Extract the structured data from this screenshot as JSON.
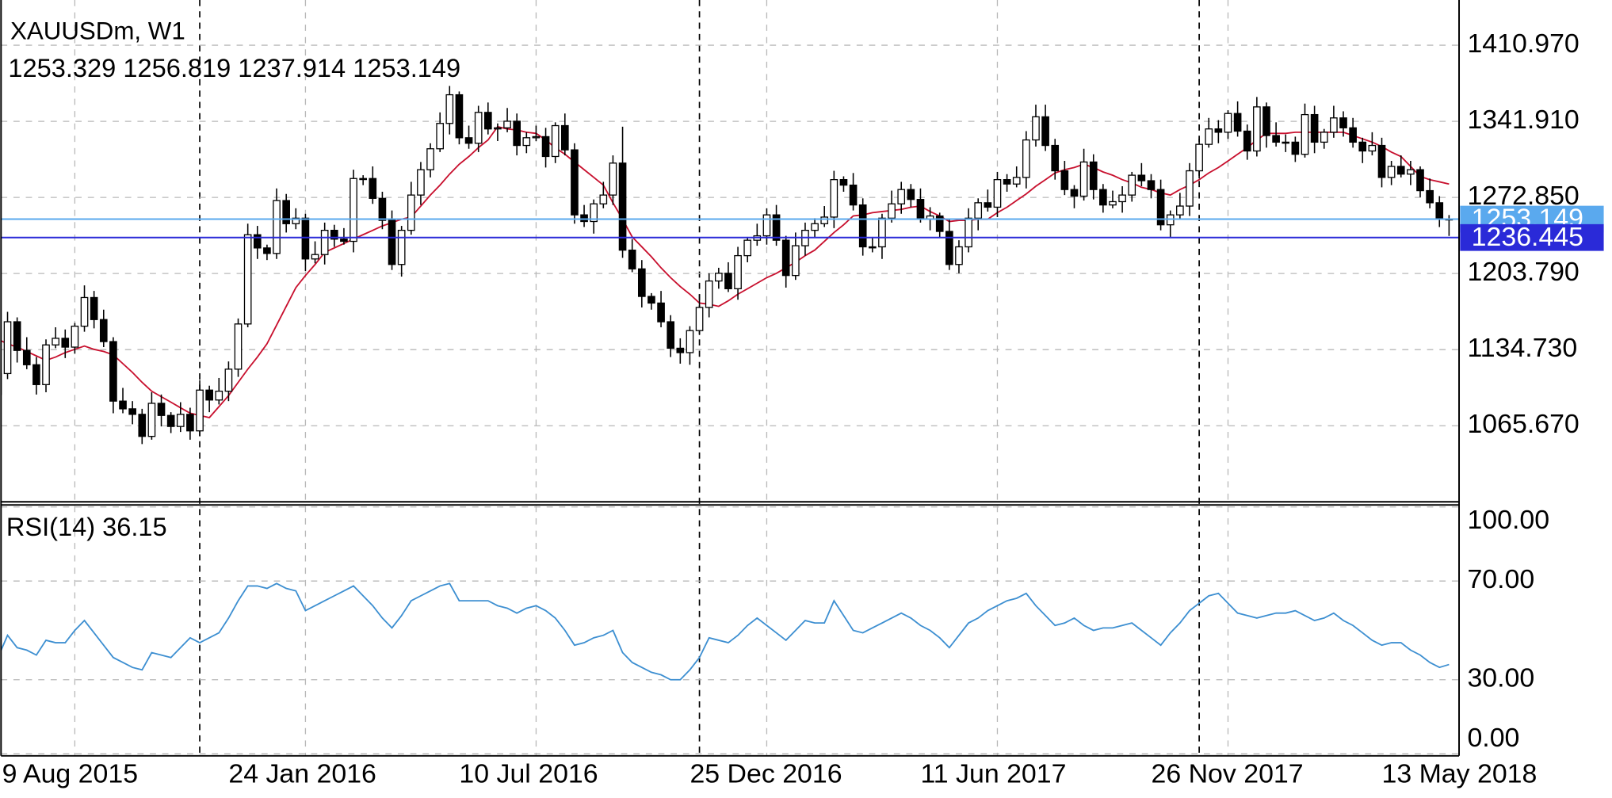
{
  "chart_data": [
    {
      "type": "candlestick",
      "title": "XAUUSDm, W1",
      "categories": [
        "9 Aug 2015",
        null,
        null,
        null,
        null,
        null,
        null,
        null,
        null,
        null,
        null,
        null,
        null,
        null,
        null,
        null,
        null,
        null,
        null,
        null,
        null,
        null,
        null,
        null,
        "24 Jan 2016",
        null,
        null,
        null,
        null,
        null,
        null,
        null,
        null,
        null,
        null,
        null,
        null,
        null,
        null,
        null,
        null,
        null,
        null,
        null,
        null,
        null,
        null,
        null,
        "10 Jul 2016",
        null,
        null,
        null,
        null,
        null,
        null,
        null,
        null,
        null,
        null,
        null,
        null,
        null,
        null,
        null,
        null,
        null,
        null,
        null,
        null,
        null,
        null,
        null,
        "25 Dec 2016",
        null,
        null,
        null,
        null,
        null,
        null,
        null,
        null,
        null,
        null,
        null,
        null,
        null,
        null,
        null,
        null,
        null,
        null,
        null,
        null,
        null,
        null,
        null,
        "11 Jun 2017",
        null,
        null,
        null,
        null,
        null,
        null,
        null,
        null,
        null,
        null,
        null,
        null,
        null,
        null,
        null,
        null,
        null,
        null,
        null,
        null,
        null,
        null,
        null,
        "26 Nov 2017",
        null,
        null,
        null,
        null,
        null,
        null,
        null,
        null,
        null,
        null,
        null,
        null,
        null,
        null,
        null,
        null,
        null,
        null,
        null,
        null,
        null,
        null,
        null,
        "13 May 2018",
        null,
        null,
        null,
        null,
        null,
        null,
        null
      ],
      "open": [
        1094,
        1113,
        1160,
        1134,
        1121,
        1103,
        1139,
        1145,
        1137,
        1156,
        1182,
        1162,
        1142,
        1088,
        1081,
        1076,
        1056,
        1086,
        1075,
        1065,
        1076,
        1061,
        1098,
        1089,
        1097,
        1117,
        1158,
        1239,
        1227,
        1222,
        1270,
        1249,
        1254,
        1217,
        1221,
        1243,
        1235,
        1233,
        1290,
        1290,
        1272,
        1252,
        1212,
        1243,
        1275,
        1298,
        1317,
        1340,
        1366,
        1327,
        1322,
        1350,
        1335,
        1336,
        1342,
        1320,
        1327,
        1328,
        1310,
        1338,
        1316,
        1257,
        1251,
        1267,
        1275,
        1304,
        1225,
        1208,
        1183,
        1177,
        1160,
        1136,
        1132,
        1152,
        1173,
        1197,
        1204,
        1190,
        1220,
        1234,
        1238,
        1257,
        1234,
        1202,
        1229,
        1243,
        1249,
        1255,
        1289,
        1284,
        1266,
        1228,
        1228,
        1254,
        1267,
        1280,
        1271,
        1253,
        1256,
        1242,
        1212,
        1228,
        1254,
        1268,
        1264,
        1289,
        1285,
        1291,
        1325,
        1346,
        1320,
        1297,
        1280,
        1274,
        1305,
        1280,
        1266,
        1269,
        1275,
        1293,
        1288,
        1280,
        1248,
        1257,
        1265,
        1297,
        1321,
        1335,
        1332,
        1349,
        1333,
        1315,
        1355,
        1329,
        1323,
        1323,
        1312,
        1348,
        1323,
        1332,
        1345,
        1336,
        1323,
        1315,
        1320,
        1291,
        1301,
        1294,
        1298,
        1279,
        1268,
        1253.329
      ],
      "high": [
        1119,
        1169,
        1164,
        1146,
        1128,
        1144,
        1155,
        1153,
        1159,
        1193,
        1188,
        1171,
        1146,
        1100,
        1088,
        1081,
        1096,
        1094,
        1078,
        1087,
        1082,
        1107,
        1102,
        1109,
        1124,
        1163,
        1249,
        1247,
        1230,
        1281,
        1276,
        1263,
        1258,
        1233,
        1250,
        1248,
        1245,
        1298,
        1293,
        1301,
        1278,
        1261,
        1247,
        1287,
        1305,
        1322,
        1350,
        1374,
        1369,
        1338,
        1356,
        1359,
        1340,
        1354,
        1349,
        1332,
        1338,
        1336,
        1341,
        1349,
        1322,
        1266,
        1271,
        1287,
        1311,
        1337,
        1235,
        1216,
        1186,
        1188,
        1166,
        1145,
        1156,
        1185,
        1204,
        1209,
        1214,
        1228,
        1237,
        1249,
        1263,
        1266,
        1238,
        1241,
        1250,
        1254,
        1265,
        1297,
        1292,
        1295,
        1272,
        1237,
        1258,
        1279,
        1287,
        1285,
        1281,
        1264,
        1259,
        1253,
        1234,
        1263,
        1272,
        1280,
        1296,
        1294,
        1301,
        1333,
        1357,
        1357,
        1326,
        1306,
        1284,
        1317,
        1312,
        1285,
        1279,
        1283,
        1296,
        1304,
        1294,
        1289,
        1261,
        1277,
        1304,
        1326,
        1345,
        1343,
        1352,
        1360,
        1339,
        1364,
        1359,
        1341,
        1330,
        1328,
        1358,
        1356,
        1335,
        1356,
        1351,
        1345,
        1327,
        1332,
        1327,
        1306,
        1311,
        1306,
        1301,
        1290,
        1274,
        1256.819
      ],
      "low": [
        1086,
        1108,
        1123,
        1117,
        1094,
        1096,
        1136,
        1127,
        1131,
        1151,
        1154,
        1137,
        1077,
        1077,
        1067,
        1049,
        1053,
        1065,
        1059,
        1060,
        1053,
        1056,
        1078,
        1085,
        1088,
        1110,
        1155,
        1217,
        1216,
        1217,
        1241,
        1244,
        1206,
        1213,
        1212,
        1228,
        1230,
        1223,
        1284,
        1267,
        1244,
        1207,
        1201,
        1239,
        1266,
        1291,
        1314,
        1330,
        1321,
        1317,
        1314,
        1330,
        1324,
        1332,
        1311,
        1313,
        1324,
        1300,
        1304,
        1311,
        1249,
        1246,
        1240,
        1263,
        1266,
        1218,
        1205,
        1173,
        1171,
        1155,
        1128,
        1122,
        1121,
        1148,
        1164,
        1190,
        1187,
        1180,
        1214,
        1229,
        1230,
        1229,
        1191,
        1198,
        1220,
        1236,
        1246,
        1245,
        1278,
        1261,
        1220,
        1223,
        1217,
        1250,
        1258,
        1264,
        1250,
        1243,
        1236,
        1207,
        1204,
        1223,
        1243,
        1260,
        1255,
        1278,
        1282,
        1281,
        1319,
        1315,
        1289,
        1275,
        1263,
        1270,
        1271,
        1259,
        1263,
        1259,
        1269,
        1283,
        1272,
        1243,
        1237,
        1253,
        1256,
        1290,
        1318,
        1322,
        1326,
        1328,
        1307,
        1310,
        1318,
        1319,
        1314,
        1305,
        1309,
        1313,
        1317,
        1327,
        1328,
        1318,
        1304,
        1311,
        1282,
        1284,
        1291,
        1284,
        1273,
        1263,
        1246,
        1237.914
      ],
      "close": [
        1113,
        1160,
        1134,
        1121,
        1103,
        1139,
        1145,
        1137,
        1156,
        1182,
        1162,
        1142,
        1088,
        1081,
        1076,
        1056,
        1086,
        1075,
        1065,
        1076,
        1061,
        1098,
        1089,
        1097,
        1117,
        1158,
        1239,
        1227,
        1222,
        1270,
        1249,
        1254,
        1217,
        1221,
        1243,
        1235,
        1233,
        1290,
        1290,
        1272,
        1252,
        1212,
        1243,
        1275,
        1298,
        1317,
        1340,
        1366,
        1327,
        1322,
        1350,
        1335,
        1336,
        1342,
        1320,
        1327,
        1328,
        1310,
        1338,
        1316,
        1257,
        1251,
        1267,
        1275,
        1304,
        1225,
        1208,
        1183,
        1177,
        1160,
        1136,
        1132,
        1152,
        1173,
        1197,
        1204,
        1190,
        1220,
        1234,
        1238,
        1257,
        1234,
        1202,
        1229,
        1243,
        1249,
        1255,
        1289,
        1284,
        1266,
        1228,
        1228,
        1254,
        1267,
        1280,
        1271,
        1253,
        1256,
        1242,
        1212,
        1228,
        1254,
        1268,
        1264,
        1289,
        1285,
        1291,
        1325,
        1346,
        1320,
        1297,
        1280,
        1274,
        1305,
        1280,
        1266,
        1269,
        1275,
        1293,
        1288,
        1280,
        1248,
        1257,
        1265,
        1297,
        1321,
        1335,
        1332,
        1349,
        1333,
        1315,
        1355,
        1329,
        1323,
        1323,
        1312,
        1348,
        1323,
        1332,
        1345,
        1336,
        1323,
        1315,
        1320,
        1291,
        1301,
        1294,
        1298,
        1279,
        1268,
        1254,
        1253.149
      ],
      "ma": {
        "color": "#c8102e",
        "values": [
          1144,
          1140,
          1137,
          1133,
          1129,
          1125,
          1128,
          1132,
          1135,
          1138,
          1135,
          1133,
          1130,
          1122,
          1114,
          1105,
          1097,
          1092,
          1087,
          1082,
          1077,
          1075,
          1073,
          1083,
          1093,
          1105,
          1117,
          1128,
          1140,
          1157,
          1174,
          1191,
          1202,
          1212,
          1223,
          1227,
          1231,
          1235,
          1239,
          1243,
          1247,
          1250,
          1253,
          1255,
          1265,
          1275,
          1284,
          1294,
          1303,
          1310,
          1318,
          1325,
          1337,
          1335,
          1334,
          1332,
          1331,
          1325,
          1318,
          1312,
          1305,
          1298,
          1291,
          1284,
          1268,
          1253,
          1237,
          1228,
          1219,
          1209,
          1200,
          1192,
          1185,
          1177,
          1176,
          1174,
          1179,
          1185,
          1190,
          1195,
          1200,
          1204,
          1209,
          1214,
          1220,
          1225,
          1233,
          1241,
          1248,
          1256,
          1257,
          1259,
          1260,
          1261,
          1262,
          1264,
          1265,
          1260,
          1256,
          1251,
          1252,
          1252,
          1253,
          1253,
          1259,
          1264,
          1270,
          1276,
          1283,
          1289,
          1295,
          1298,
          1300,
          1303,
          1300,
          1296,
          1293,
          1289,
          1286,
          1282,
          1280,
          1277,
          1275,
          1280,
          1284,
          1289,
          1295,
          1300,
          1306,
          1312,
          1318,
          1325,
          1331,
          1331,
          1331,
          1332,
          1332,
          1332,
          1332,
          1332,
          1332,
          1329,
          1326,
          1323,
          1319,
          1314,
          1310,
          1301,
          1292,
          1289,
          1287,
          1285
        ]
      },
      "up_color": "#ffffff",
      "down_color": "#000000",
      "ylim": [
        996.6,
        1452.0
      ],
      "yticks": [
        {
          "value": 1065.67,
          "label": "1065.670"
        },
        {
          "value": 1134.73,
          "label": "1134.730"
        },
        {
          "value": 1203.79,
          "label": "1203.790"
        },
        {
          "value": 1272.85,
          "label": "1272.850"
        },
        {
          "value": 1341.91,
          "label": "1341.910"
        },
        {
          "value": 1410.97,
          "label": "1410.970"
        }
      ],
      "grid": true,
      "price_lines": [
        {
          "value": 1253.149,
          "color": "#5aa9ee"
        },
        {
          "value": 1236.445,
          "color": "#2a2ad8"
        }
      ]
    },
    {
      "type": "line",
      "title": "RSI(14)",
      "color": "#3d8fd1",
      "values": [
        39,
        48,
        43,
        42,
        40,
        46,
        45,
        45,
        50,
        54,
        49,
        44,
        39,
        37,
        35,
        34,
        41,
        40,
        39,
        43,
        47,
        45,
        47,
        49,
        55,
        62,
        68,
        68,
        67,
        69,
        67,
        66,
        58,
        60,
        62,
        64,
        66,
        68,
        64,
        60,
        55,
        51,
        56,
        62,
        64,
        66,
        68,
        69,
        62,
        62,
        62,
        62,
        60,
        59,
        57,
        59,
        60,
        58,
        55,
        50,
        44,
        45,
        47,
        48,
        50,
        41,
        37,
        35,
        33,
        32,
        30,
        30,
        34,
        39,
        47,
        46,
        45,
        48,
        52,
        55,
        52,
        49,
        46,
        50,
        54,
        53,
        53,
        62,
        56,
        50,
        49,
        51,
        53,
        55,
        57,
        55,
        52,
        50,
        47,
        43,
        48,
        53,
        55,
        58,
        60,
        62,
        63,
        65,
        60,
        56,
        52,
        53,
        55,
        52,
        50,
        51,
        51,
        52,
        53,
        50,
        47,
        44,
        49,
        53,
        58,
        61,
        64,
        65,
        61,
        57,
        56,
        55,
        56,
        57,
        57,
        58,
        56,
        54,
        55,
        57,
        54,
        52,
        49,
        46,
        44,
        45,
        45,
        42,
        40,
        37,
        35,
        36.15
      ],
      "ylim": [
        0,
        100
      ],
      "yticks": [
        {
          "value": 0,
          "label": "0.00"
        },
        {
          "value": 30,
          "label": "30.00"
        },
        {
          "value": 70,
          "label": "70.00"
        },
        {
          "value": 100,
          "label": "100.00"
        }
      ],
      "grid": true
    }
  ]
}
